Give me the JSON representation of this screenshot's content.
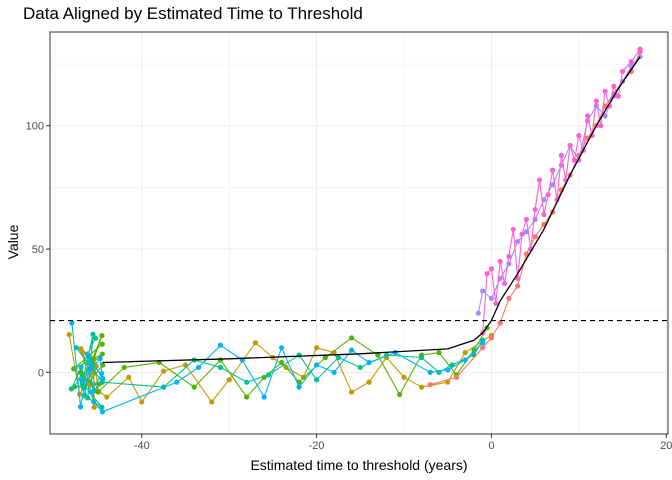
{
  "chart_data": {
    "type": "scatter",
    "title": "Data Aligned by Estimated Time to Threshold",
    "xlabel": "Estimated time to threshold (years)",
    "ylabel": "Value",
    "xlim": [
      -50.5,
      20.2
    ],
    "ylim": [
      -25,
      138
    ],
    "x_ticks": [
      -40,
      -20,
      0,
      20
    ],
    "y_ticks": [
      0,
      50,
      100
    ],
    "x_tick_labels": [
      "-40",
      "-20",
      "0",
      "20"
    ],
    "y_tick_labels": [
      "0",
      "50",
      "100"
    ],
    "grid": true,
    "legend": "none",
    "threshold_line": {
      "y": 21,
      "style": "dashed",
      "color": "#000000"
    },
    "fit_line": {
      "color": "#000000",
      "points": [
        [
          -44.5,
          4
        ],
        [
          -30,
          5.5
        ],
        [
          -15,
          7.5
        ],
        [
          -5,
          9.5
        ],
        [
          -2,
          13
        ],
        [
          -1,
          16
        ],
        [
          0,
          21
        ],
        [
          1,
          29
        ],
        [
          3,
          40
        ],
        [
          6,
          58
        ],
        [
          9,
          80
        ],
        [
          12,
          100
        ],
        [
          14.5,
          115
        ],
        [
          17,
          128
        ]
      ]
    },
    "series_colors": [
      "#F8766D",
      "#C49A00",
      "#53B400",
      "#00C094",
      "#00B6EB",
      "#A58AFF",
      "#FB61D7"
    ],
    "series": [
      {
        "color": "#C49A00",
        "points": [
          [
            -46,
            -5
          ],
          [
            -44,
            -10
          ],
          [
            -41.5,
            -2
          ],
          [
            -40,
            -12
          ],
          [
            -37.5,
            0.5
          ],
          [
            -35,
            3
          ],
          [
            -32,
            -12
          ],
          [
            -30,
            -3
          ],
          [
            -27,
            12
          ],
          [
            -25,
            6
          ],
          [
            -23.5,
            2
          ],
          [
            -21.5,
            -2
          ],
          [
            -20,
            10
          ],
          [
            -18,
            8
          ],
          [
            -16,
            -8
          ],
          [
            -14,
            -4
          ],
          [
            -12,
            6
          ],
          [
            -10,
            -2
          ],
          [
            -8,
            -6
          ],
          [
            -5,
            -4
          ],
          [
            -3,
            8
          ],
          [
            0,
            15
          ]
        ]
      },
      {
        "color": "#53B400",
        "points": [
          [
            -47,
            0
          ],
          [
            -45,
            -8
          ],
          [
            -42,
            2
          ],
          [
            -38,
            4
          ],
          [
            -34,
            -6
          ],
          [
            -31,
            5
          ],
          [
            -28,
            -10
          ],
          [
            -26,
            -2
          ],
          [
            -24,
            4
          ],
          [
            -22,
            -4
          ],
          [
            -19,
            6
          ],
          [
            -16,
            14
          ],
          [
            -13,
            7
          ],
          [
            -10.5,
            -9
          ],
          [
            -8,
            7
          ],
          [
            -6,
            8
          ],
          [
            -4,
            -1
          ],
          [
            -2,
            9
          ],
          [
            -0.5,
            18
          ]
        ]
      },
      {
        "color": "#00C094",
        "points": [
          [
            -47.5,
            10
          ],
          [
            -44.5,
            -4
          ],
          [
            -37.5,
            -6
          ],
          [
            -34,
            5
          ],
          [
            -31,
            2
          ],
          [
            -28,
            -4
          ],
          [
            -25.5,
            -1
          ],
          [
            -22,
            7
          ],
          [
            -20,
            -3
          ],
          [
            -17.5,
            6
          ],
          [
            -15,
            2
          ],
          [
            -12,
            7
          ],
          [
            -8,
            6
          ],
          [
            -6,
            0
          ],
          [
            -4.5,
            3
          ],
          [
            -2,
            7
          ],
          [
            -1,
            13
          ]
        ]
      },
      {
        "color": "#00B6EB",
        "points": [
          [
            -48,
            20
          ],
          [
            -47,
            -14
          ],
          [
            -46,
            6
          ],
          [
            -45.5,
            -12
          ],
          [
            -44.5,
            -16
          ],
          [
            -36,
            -4
          ],
          [
            -33.5,
            2
          ],
          [
            -31,
            11
          ],
          [
            -28.5,
            5
          ],
          [
            -26,
            -10
          ],
          [
            -24,
            10
          ],
          [
            -22,
            -6
          ],
          [
            -20,
            3
          ],
          [
            -18,
            0
          ],
          [
            -16,
            9
          ],
          [
            -14,
            4
          ],
          [
            -11,
            8
          ],
          [
            -7,
            0
          ],
          [
            -5,
            1
          ],
          [
            -3,
            5
          ],
          [
            -1,
            12
          ]
        ]
      },
      {
        "color": "#F8766D",
        "points": [
          [
            -7,
            -5
          ],
          [
            -4,
            -2
          ],
          [
            -1,
            10
          ],
          [
            0,
            14
          ],
          [
            1,
            20
          ],
          [
            2,
            30
          ],
          [
            3,
            35
          ],
          [
            4,
            48
          ],
          [
            5,
            55
          ],
          [
            6,
            60
          ],
          [
            7,
            65
          ],
          [
            8,
            74
          ],
          [
            9,
            80
          ],
          [
            10,
            88
          ],
          [
            11,
            95
          ],
          [
            12,
            100
          ],
          [
            13,
            108
          ],
          [
            14,
            113
          ],
          [
            15,
            118
          ],
          [
            16,
            122
          ],
          [
            17,
            130
          ]
        ]
      },
      {
        "color": "#A58AFF",
        "points": [
          [
            -1.5,
            24
          ],
          [
            -1,
            33
          ],
          [
            0,
            30
          ],
          [
            1,
            38
          ],
          [
            2,
            44
          ],
          [
            3,
            53
          ],
          [
            4,
            57
          ],
          [
            5,
            62
          ],
          [
            6,
            70
          ],
          [
            7,
            76
          ],
          [
            8,
            84
          ],
          [
            9,
            92
          ],
          [
            10,
            86
          ],
          [
            11,
            102
          ],
          [
            12,
            108
          ],
          [
            13,
            104
          ],
          [
            14,
            112
          ],
          [
            15,
            118
          ],
          [
            16,
            124
          ],
          [
            17,
            128
          ]
        ]
      },
      {
        "color": "#FB61D7",
        "points": [
          [
            -1,
            16
          ],
          [
            -0.5,
            40
          ],
          [
            0,
            42
          ],
          [
            0.5,
            28
          ],
          [
            1,
            45
          ],
          [
            1.5,
            36
          ],
          [
            2,
            47
          ],
          [
            2.5,
            58
          ],
          [
            3,
            38
          ],
          [
            3.5,
            56
          ],
          [
            4,
            62
          ],
          [
            4.5,
            50
          ],
          [
            5,
            66
          ],
          [
            5.5,
            78
          ],
          [
            6,
            64
          ],
          [
            6.5,
            72
          ],
          [
            7,
            82
          ],
          [
            7.5,
            70
          ],
          [
            8,
            88
          ],
          [
            8.5,
            78
          ],
          [
            9,
            92
          ],
          [
            9.5,
            86
          ],
          [
            10,
            96
          ],
          [
            10.5,
            90
          ],
          [
            11,
            104
          ],
          [
            11.5,
            96
          ],
          [
            12,
            110
          ],
          [
            12.5,
            100
          ],
          [
            13,
            114
          ],
          [
            13.5,
            108
          ],
          [
            14,
            116
          ],
          [
            14.5,
            112
          ],
          [
            15,
            122
          ],
          [
            16,
            126
          ],
          [
            17,
            131
          ]
        ]
      }
    ],
    "cluster": {
      "x_range": [
        -48.3,
        -44.2
      ],
      "y_range": [
        -16,
        18
      ],
      "count_per_color": 10,
      "colors": [
        "#C49A00",
        "#53B400",
        "#00C094",
        "#00B6EB"
      ]
    }
  }
}
